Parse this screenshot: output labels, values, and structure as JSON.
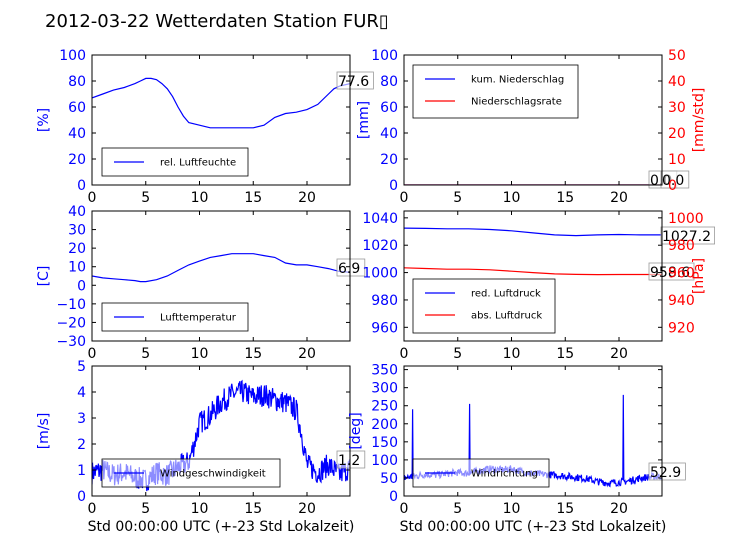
{
  "title": "2012-03-22 Wetterdaten Station FUR",
  "title_glyph": "▯",
  "colors": {
    "blue": "#0000ff",
    "red": "#ff0000",
    "black": "#000000",
    "faded_blue": "#8080ff"
  },
  "chart_data": [
    {
      "type": "line",
      "ylabel": "[%]",
      "ylim": [
        0,
        100
      ],
      "yticks": [
        "0",
        "20",
        "40",
        "60",
        "80",
        "100"
      ],
      "xlim": [
        0,
        24
      ],
      "xticks": [
        "0",
        "5",
        "10",
        "15",
        "20"
      ],
      "legend": [
        {
          "label": "rel. Luftfeuchte",
          "color": "#0000ff"
        }
      ],
      "legend_position": "lower-left",
      "annotations": [
        "77.6"
      ],
      "series": [
        {
          "name": "rel. Luftfeuchte",
          "color": "#0000ff",
          "x": [
            0,
            1,
            2,
            3,
            4,
            4.5,
            5,
            5.5,
            6,
            6.5,
            7,
            7.5,
            8,
            8.5,
            9,
            10,
            11,
            12,
            13,
            14,
            15,
            16,
            17,
            18,
            19,
            20,
            21,
            22,
            22.5,
            23,
            24
          ],
          "y": [
            67,
            70,
            73,
            75,
            78,
            80,
            82,
            82,
            81,
            78,
            74,
            68,
            60,
            53,
            48,
            46,
            44,
            44,
            44,
            44,
            44,
            46,
            52,
            55,
            56,
            58,
            62,
            70,
            74,
            76,
            78
          ]
        }
      ]
    },
    {
      "type": "line",
      "ylabel": "[mm]",
      "ylim": [
        0,
        100
      ],
      "yticks": [
        "0",
        "20",
        "40",
        "60",
        "80",
        "100"
      ],
      "y2label": "[mm/std]",
      "y2lim": [
        0,
        50
      ],
      "y2ticks": [
        "0",
        "10",
        "20",
        "30",
        "40",
        "50"
      ],
      "xlim": [
        0,
        24
      ],
      "xticks": [
        "0",
        "5",
        "10",
        "15",
        "20"
      ],
      "legend": [
        {
          "label": "kum. Niederschlag",
          "color": "#0000ff"
        },
        {
          "label": "Niederschlagsrate",
          "color": "#ff0000"
        }
      ],
      "legend_position": "upper-left",
      "annotations": [
        "0.0",
        "0.0"
      ],
      "series": [
        {
          "name": "kum. Niederschlag",
          "color": "#0000ff",
          "axis": "left",
          "x": [
            0,
            24
          ],
          "y": [
            0,
            0
          ]
        },
        {
          "name": "Niederschlagsrate",
          "color": "#ff0000",
          "axis": "right",
          "x": [
            0,
            24
          ],
          "y": [
            0,
            0
          ]
        }
      ]
    },
    {
      "type": "line",
      "ylabel": "[C]",
      "ylim": [
        -30,
        40
      ],
      "yticks": [
        "−30",
        "−20",
        "−10",
        "0",
        "10",
        "20",
        "30",
        "40"
      ],
      "xlim": [
        0,
        24
      ],
      "xticks": [
        "0",
        "5",
        "10",
        "15",
        "20"
      ],
      "legend": [
        {
          "label": "Lufttemperatur",
          "color": "#0000ff"
        }
      ],
      "legend_position": "lower-left",
      "annotations": [
        "6.9"
      ],
      "series": [
        {
          "name": "Lufttemperatur",
          "color": "#0000ff",
          "x": [
            0,
            1,
            2,
            3,
            4,
            4.5,
            5,
            6,
            7,
            8,
            9,
            10,
            11,
            12,
            13,
            14,
            15,
            16,
            17,
            18,
            19,
            20,
            21,
            22,
            23,
            24
          ],
          "y": [
            5,
            4,
            3.5,
            3,
            2.5,
            2,
            2,
            3,
            5,
            8,
            11,
            13,
            15,
            16,
            17,
            17,
            17,
            16,
            15,
            12,
            11,
            11,
            10,
            9,
            7.5,
            7
          ]
        }
      ]
    },
    {
      "type": "line",
      "ylim": [
        950,
        1045
      ],
      "yticks": [
        "960",
        "980",
        "1000",
        "1020",
        "1040"
      ],
      "y2label": "[hPa]",
      "y2lim": [
        910,
        1005
      ],
      "y2ticks": [
        "920",
        "940",
        "960",
        "980",
        "1000"
      ],
      "xlim": [
        0,
        24
      ],
      "xticks": [
        "0",
        "5",
        "10",
        "15",
        "20"
      ],
      "legend": [
        {
          "label": "red. Luftdruck",
          "color": "#0000ff"
        },
        {
          "label": "abs. Luftdruck",
          "color": "#ff0000"
        }
      ],
      "legend_position": "lower-left",
      "annotations": [
        "1027.2",
        "958.6"
      ],
      "series": [
        {
          "name": "red. Luftdruck",
          "color": "#0000ff",
          "axis": "left",
          "x": [
            0,
            2,
            4,
            6,
            8,
            10,
            12,
            14,
            16,
            18,
            20,
            22,
            24
          ],
          "y": [
            1032.5,
            1032.3,
            1032,
            1032,
            1031.5,
            1030.5,
            1029,
            1027.5,
            1027,
            1027.5,
            1027.8,
            1027.5,
            1027.5
          ]
        },
        {
          "name": "abs. Luftdruck",
          "color": "#ff0000",
          "axis": "right",
          "x": [
            0,
            2,
            4,
            6,
            8,
            10,
            12,
            14,
            16,
            18,
            20,
            22,
            24
          ],
          "y": [
            963.5,
            963,
            962.5,
            962.5,
            962,
            961,
            960,
            959,
            958.7,
            958.5,
            958.6,
            958.6,
            958.6
          ]
        }
      ]
    },
    {
      "type": "line",
      "ylabel": "[m/s]",
      "ylim": [
        0,
        5
      ],
      "yticks": [
        "0",
        "1",
        "2",
        "3",
        "4",
        "5"
      ],
      "xlim": [
        0,
        24
      ],
      "xticks": [
        "0",
        "5",
        "10",
        "15",
        "20"
      ],
      "xlabel": "Std 00:00:00 UTC (+-23 Std Lokalzeit)",
      "legend": [
        {
          "label": "Windgeschwindigkeit",
          "color": "#0000ff"
        }
      ],
      "legend_position": "lower-left",
      "annotations": [
        "1.2"
      ],
      "series": [
        {
          "name": "Windgeschwindigkeit",
          "color": "#0000ff",
          "x": [
            0,
            1,
            2,
            3,
            4,
            5,
            6,
            7,
            8,
            9,
            9.5,
            10,
            11,
            12,
            13,
            14,
            15,
            16,
            17,
            18,
            19,
            19.5,
            20,
            21,
            22,
            23,
            24
          ],
          "y": [
            0.9,
            1,
            0.8,
            0.9,
            0.7,
            0.6,
            0.9,
            0.8,
            1.1,
            1.3,
            2,
            2.8,
            3.1,
            3.6,
            3.9,
            4,
            3.8,
            3.9,
            3.7,
            3.6,
            3.3,
            2.4,
            1.2,
            0.9,
            1.2,
            0.8,
            1.1
          ],
          "noise": 0.45
        }
      ]
    },
    {
      "type": "line",
      "ylabel": "[deg]",
      "ylim": [
        0,
        360
      ],
      "yticks": [
        "0",
        "50",
        "100",
        "150",
        "200",
        "250",
        "300",
        "350"
      ],
      "xlim": [
        0,
        24
      ],
      "xticks": [
        "0",
        "5",
        "10",
        "15",
        "20"
      ],
      "xlabel": "Std 00:00:00 UTC (+-23 Std Lokalzeit)",
      "legend": [
        {
          "label": "Windrichtung",
          "color": "#0000ff"
        }
      ],
      "legend_position": "lower-left",
      "annotations": [
        "52.9"
      ],
      "series": [
        {
          "name": "Windrichtung",
          "color": "#0000ff",
          "x": [
            0,
            1,
            2,
            3,
            4,
            5,
            6,
            7,
            8,
            9,
            10,
            11,
            12,
            13,
            14,
            15,
            16,
            17,
            18,
            19,
            20,
            21,
            22,
            23,
            24
          ],
          "y": [
            50,
            55,
            60,
            58,
            62,
            65,
            62,
            70,
            75,
            72,
            75,
            68,
            62,
            60,
            58,
            55,
            52,
            48,
            40,
            36,
            38,
            42,
            50,
            53,
            55
          ],
          "spikes": [
            [
              0.8,
              240
            ],
            [
              6.1,
              255
            ],
            [
              20.4,
              280
            ]
          ],
          "noise": 10
        }
      ]
    }
  ]
}
